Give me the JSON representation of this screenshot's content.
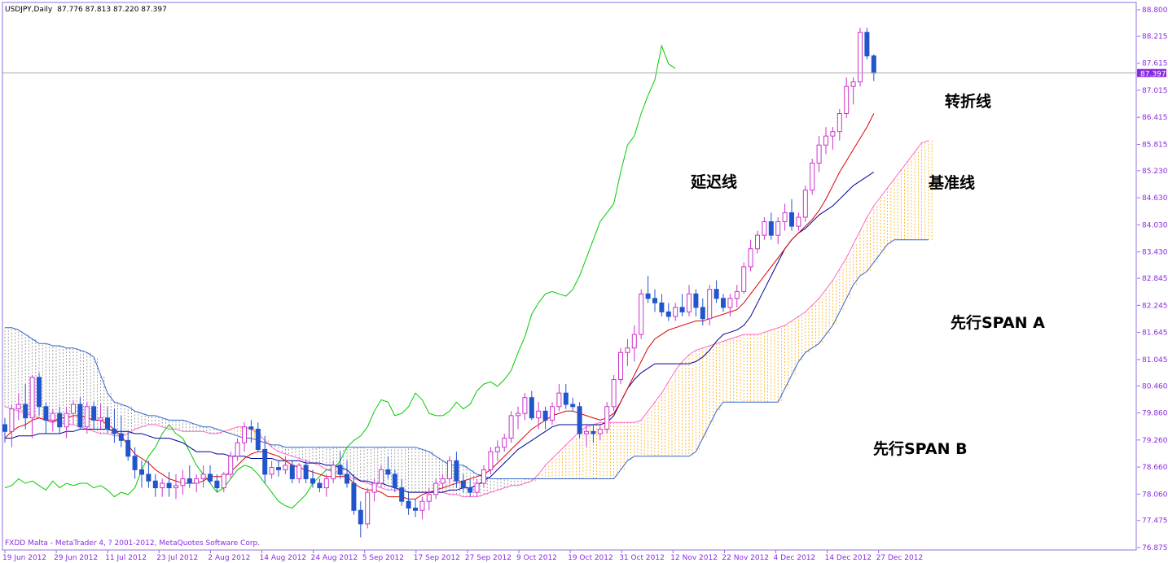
{
  "chart_data": {
    "type": "candlestick",
    "title": "USDJPY,Daily",
    "ohlc_header": "87.776 87.813 87.220 87.397",
    "footer": "FXDD Malta - MetaTrader 4, ? 2001-2012, MetaQuotes Software Corp.",
    "current_price_label": "87.397",
    "current_price": 87.397,
    "ylim": [
      76.875,
      88.8
    ],
    "y_ticks": [
      "88.800",
      "88.215",
      "87.615",
      "87.015",
      "86.415",
      "85.815",
      "85.230",
      "84.630",
      "84.030",
      "83.430",
      "82.845",
      "82.245",
      "81.645",
      "81.045",
      "80.460",
      "79.860",
      "79.260",
      "78.660",
      "78.060",
      "77.475",
      "76.875"
    ],
    "x_ticks": [
      "19 Jun 2012",
      "29 Jun 2012",
      "11 Jul 2012",
      "23 Jul 2012",
      "2 Aug 2012",
      "14 Aug 2012",
      "24 Aug 2012",
      "5 Sep 2012",
      "17 Sep 2012",
      "27 Sep 2012",
      "9 Oct 2012",
      "19 Oct 2012",
      "31 Oct 2012",
      "12 Nov 2012",
      "22 Nov 2012",
      "4 Dec 2012",
      "14 Dec 2012",
      "27 Dec 2012"
    ],
    "annotations": [
      "转折线",
      "延迟线",
      "基准线",
      "先行SPAN A",
      "先行SPAN B"
    ],
    "colors": {
      "bull": "#cc33cc",
      "bear": "#2255cc",
      "tenkan": "#dd0000",
      "kijun": "#000099",
      "chikou": "#00cc00",
      "span_a": "#ff66cc",
      "span_b": "#3366cc",
      "cloud_bull": "#ffaa00",
      "cloud_bear": "#888888",
      "axis_text": "#8a2be2"
    },
    "candles": [
      [
        79.6,
        79.75,
        79.2,
        79.45
      ],
      [
        79.45,
        80.05,
        79.1,
        79.95
      ],
      [
        79.95,
        80.3,
        79.7,
        80.05
      ],
      [
        80.05,
        80.5,
        79.5,
        79.75
      ],
      [
        79.75,
        80.7,
        79.3,
        80.65
      ],
      [
        80.65,
        80.75,
        79.8,
        80.0
      ],
      [
        80.0,
        80.1,
        79.4,
        79.7
      ],
      [
        79.7,
        79.95,
        79.45,
        79.85
      ],
      [
        79.85,
        80.0,
        79.4,
        79.55
      ],
      [
        79.55,
        80.0,
        79.3,
        79.85
      ],
      [
        79.85,
        80.15,
        79.6,
        80.05
      ],
      [
        80.05,
        80.2,
        79.5,
        79.55
      ],
      [
        79.55,
        80.1,
        79.4,
        80.0
      ],
      [
        80.0,
        80.1,
        79.5,
        79.7
      ],
      [
        79.7,
        80.05,
        79.5,
        79.75
      ],
      [
        79.75,
        80.0,
        79.4,
        79.5
      ],
      [
        79.5,
        79.95,
        79.2,
        79.4
      ],
      [
        79.4,
        79.8,
        79.1,
        79.25
      ],
      [
        79.25,
        79.45,
        78.8,
        78.9
      ],
      [
        78.9,
        79.1,
        78.4,
        78.6
      ],
      [
        78.6,
        78.8,
        78.2,
        78.5
      ],
      [
        78.5,
        78.8,
        78.2,
        78.35
      ],
      [
        78.35,
        78.5,
        78.0,
        78.2
      ],
      [
        78.2,
        78.4,
        78.0,
        78.3
      ],
      [
        78.3,
        78.55,
        78.0,
        78.2
      ],
      [
        78.2,
        78.5,
        77.95,
        78.25
      ],
      [
        78.25,
        78.6,
        78.05,
        78.4
      ],
      [
        78.4,
        78.7,
        78.2,
        78.3
      ],
      [
        78.3,
        78.5,
        78.1,
        78.4
      ],
      [
        78.4,
        78.7,
        78.2,
        78.5
      ],
      [
        78.5,
        78.7,
        78.3,
        78.35
      ],
      [
        78.35,
        78.5,
        78.1,
        78.2
      ],
      [
        78.2,
        78.55,
        78.1,
        78.5
      ],
      [
        78.5,
        79.0,
        78.4,
        78.9
      ],
      [
        78.9,
        79.3,
        78.8,
        79.2
      ],
      [
        79.2,
        79.65,
        79.0,
        79.55
      ],
      [
        79.55,
        79.7,
        79.2,
        79.5
      ],
      [
        79.5,
        79.65,
        79.0,
        79.05
      ],
      [
        79.05,
        79.35,
        78.3,
        78.5
      ],
      [
        78.5,
        78.8,
        78.4,
        78.65
      ],
      [
        78.65,
        78.8,
        78.45,
        78.6
      ],
      [
        78.6,
        78.9,
        78.5,
        78.7
      ],
      [
        78.7,
        78.8,
        78.3,
        78.4
      ],
      [
        78.4,
        78.75,
        78.3,
        78.7
      ],
      [
        78.7,
        78.8,
        78.3,
        78.4
      ],
      [
        78.4,
        78.6,
        78.2,
        78.3
      ],
      [
        78.3,
        78.4,
        78.1,
        78.2
      ],
      [
        78.2,
        78.5,
        78.0,
        78.4
      ],
      [
        78.4,
        78.8,
        78.3,
        78.7
      ],
      [
        78.7,
        79.0,
        78.4,
        78.5
      ],
      [
        78.5,
        78.8,
        78.2,
        78.3
      ],
      [
        78.3,
        78.5,
        77.6,
        77.7
      ],
      [
        77.7,
        77.9,
        77.1,
        77.4
      ],
      [
        77.4,
        78.2,
        77.3,
        78.1
      ],
      [
        78.1,
        78.4,
        77.9,
        78.3
      ],
      [
        78.3,
        78.7,
        78.2,
        78.6
      ],
      [
        78.6,
        78.9,
        78.4,
        78.5
      ],
      [
        78.5,
        78.6,
        78.1,
        78.2
      ],
      [
        78.2,
        78.4,
        77.8,
        77.9
      ],
      [
        77.9,
        78.1,
        77.6,
        77.75
      ],
      [
        77.75,
        77.95,
        77.55,
        77.7
      ],
      [
        77.7,
        78.0,
        77.5,
        77.9
      ],
      [
        77.9,
        78.2,
        77.7,
        78.05
      ],
      [
        78.05,
        78.4,
        77.95,
        78.3
      ],
      [
        78.3,
        78.5,
        78.2,
        78.4
      ],
      [
        78.4,
        78.9,
        78.3,
        78.8
      ],
      [
        78.8,
        79.0,
        78.2,
        78.35
      ],
      [
        78.35,
        78.5,
        78.1,
        78.2
      ],
      [
        78.2,
        78.4,
        78.0,
        78.1
      ],
      [
        78.1,
        78.4,
        78.0,
        78.3
      ],
      [
        78.3,
        78.7,
        78.2,
        78.6
      ],
      [
        78.6,
        79.1,
        78.5,
        79.0
      ],
      [
        79.0,
        79.25,
        78.8,
        79.1
      ],
      [
        79.1,
        79.4,
        79.0,
        79.3
      ],
      [
        79.3,
        79.9,
        79.2,
        79.8
      ],
      [
        79.8,
        80.0,
        79.5,
        79.85
      ],
      [
        79.85,
        80.3,
        79.7,
        80.2
      ],
      [
        80.2,
        80.35,
        79.7,
        79.75
      ],
      [
        79.75,
        80.1,
        79.5,
        79.9
      ],
      [
        79.9,
        80.0,
        79.5,
        79.7
      ],
      [
        79.7,
        80.1,
        79.6,
        80.0
      ],
      [
        80.0,
        80.5,
        79.9,
        80.3
      ],
      [
        80.3,
        80.5,
        79.95,
        80.05
      ],
      [
        80.05,
        80.2,
        79.9,
        80.0
      ],
      [
        80.0,
        80.1,
        79.3,
        79.4
      ],
      [
        79.4,
        79.6,
        79.1,
        79.45
      ],
      [
        79.45,
        79.6,
        79.2,
        79.4
      ],
      [
        79.4,
        79.6,
        79.25,
        79.5
      ],
      [
        79.5,
        80.1,
        79.4,
        80.0
      ],
      [
        80.0,
        80.7,
        79.9,
        80.6
      ],
      [
        80.6,
        81.3,
        80.5,
        81.2
      ],
      [
        81.2,
        81.5,
        80.9,
        81.3
      ],
      [
        81.3,
        81.8,
        81.0,
        81.6
      ],
      [
        81.6,
        82.6,
        81.5,
        82.5
      ],
      [
        82.5,
        82.9,
        82.3,
        82.4
      ],
      [
        82.4,
        82.6,
        82.1,
        82.3
      ],
      [
        82.3,
        82.5,
        82.0,
        82.1
      ],
      [
        82.1,
        82.3,
        81.9,
        82.0
      ],
      [
        82.0,
        82.3,
        81.9,
        82.2
      ],
      [
        82.2,
        82.5,
        82.0,
        82.1
      ],
      [
        82.1,
        82.7,
        82.0,
        82.5
      ],
      [
        82.5,
        82.6,
        82.0,
        82.2
      ],
      [
        82.2,
        82.4,
        81.8,
        81.95
      ],
      [
        81.95,
        82.7,
        81.8,
        82.6
      ],
      [
        82.6,
        82.8,
        82.3,
        82.4
      ],
      [
        82.4,
        82.5,
        82.1,
        82.2
      ],
      [
        82.2,
        82.5,
        82.0,
        82.4
      ],
      [
        82.4,
        82.7,
        82.2,
        82.55
      ],
      [
        82.55,
        83.2,
        82.5,
        83.1
      ],
      [
        83.1,
        83.7,
        83.0,
        83.5
      ],
      [
        83.5,
        83.9,
        83.4,
        83.8
      ],
      [
        83.8,
        84.2,
        83.7,
        84.1
      ],
      [
        84.1,
        84.3,
        83.7,
        83.8
      ],
      [
        83.8,
        84.2,
        83.6,
        84.1
      ],
      [
        84.1,
        84.5,
        83.9,
        84.3
      ],
      [
        84.3,
        84.6,
        83.9,
        84.0
      ],
      [
        84.0,
        84.3,
        83.9,
        84.2
      ],
      [
        84.2,
        84.9,
        84.1,
        84.8
      ],
      [
        84.8,
        85.5,
        84.7,
        85.4
      ],
      [
        85.4,
        86.0,
        85.2,
        85.8
      ],
      [
        85.8,
        86.2,
        85.6,
        86.0
      ],
      [
        86.0,
        86.2,
        85.7,
        86.1
      ],
      [
        86.1,
        86.6,
        85.9,
        86.5
      ],
      [
        86.5,
        87.3,
        86.4,
        87.1
      ],
      [
        87.1,
        87.3,
        86.7,
        87.2
      ],
      [
        87.2,
        88.4,
        87.1,
        88.3
      ],
      [
        88.3,
        88.4,
        87.7,
        87.776
      ],
      [
        87.776,
        87.813,
        87.22,
        87.397
      ]
    ],
    "tenkan": [
      79.3,
      79.45,
      79.55,
      79.6,
      79.7,
      79.75,
      79.7,
      79.65,
      79.75,
      79.75,
      79.8,
      79.8,
      79.75,
      79.7,
      79.7,
      79.6,
      79.5,
      79.35,
      79.15,
      78.95,
      78.85,
      78.75,
      78.6,
      78.5,
      78.4,
      78.35,
      78.3,
      78.3,
      78.3,
      78.35,
      78.45,
      78.45,
      78.45,
      78.55,
      78.7,
      78.85,
      78.95,
      79.0,
      79.0,
      78.95,
      78.9,
      78.8,
      78.7,
      78.65,
      78.6,
      78.55,
      78.5,
      78.45,
      78.45,
      78.45,
      78.45,
      78.3,
      78.2,
      78.15,
      78.15,
      78.1,
      78.0,
      78.0,
      78.0,
      77.95,
      77.95,
      78.05,
      78.1,
      78.15,
      78.2,
      78.25,
      78.3,
      78.35,
      78.4,
      78.45,
      78.5,
      78.6,
      78.75,
      78.9,
      79.05,
      79.2,
      79.35,
      79.5,
      79.6,
      79.7,
      79.8,
      79.85,
      79.9,
      79.9,
      79.85,
      79.8,
      79.75,
      79.7,
      79.75,
      79.85,
      80.1,
      80.4,
      80.7,
      81.0,
      81.3,
      81.5,
      81.6,
      81.7,
      81.75,
      81.8,
      81.85,
      81.9,
      81.9,
      81.95,
      82.0,
      82.05,
      82.1,
      82.15,
      82.3,
      82.5,
      82.7,
      82.9,
      83.1,
      83.3,
      83.5,
      83.7,
      83.85,
      84.0,
      84.15,
      84.35,
      84.6,
      84.9,
      85.2,
      85.45,
      85.7,
      85.95,
      86.2,
      86.5
    ],
    "kijun": [
      79.3,
      79.3,
      79.35,
      79.35,
      79.35,
      79.4,
      79.4,
      79.4,
      79.4,
      79.45,
      79.45,
      79.5,
      79.5,
      79.5,
      79.5,
      79.5,
      79.45,
      79.45,
      79.45,
      79.4,
      79.4,
      79.35,
      79.3,
      79.3,
      79.3,
      79.25,
      79.2,
      79.1,
      79.0,
      79.0,
      79.0,
      78.95,
      78.95,
      78.9,
      78.9,
      78.9,
      78.85,
      78.85,
      78.85,
      78.85,
      78.8,
      78.8,
      78.8,
      78.8,
      78.75,
      78.75,
      78.75,
      78.7,
      78.7,
      78.65,
      78.6,
      78.45,
      78.35,
      78.35,
      78.3,
      78.3,
      78.25,
      78.2,
      78.15,
      78.1,
      78.1,
      78.1,
      78.1,
      78.1,
      78.1,
      78.15,
      78.15,
      78.2,
      78.2,
      78.25,
      78.35,
      78.45,
      78.6,
      78.75,
      78.9,
      79.05,
      79.15,
      79.25,
      79.35,
      79.45,
      79.55,
      79.6,
      79.6,
      79.6,
      79.6,
      79.6,
      79.6,
      79.6,
      79.65,
      79.8,
      80.1,
      80.4,
      80.6,
      80.75,
      80.85,
      80.95,
      80.95,
      80.95,
      80.95,
      80.95,
      80.95,
      81.0,
      81.1,
      81.25,
      81.45,
      81.6,
      81.65,
      81.7,
      81.8,
      82.0,
      82.3,
      82.6,
      82.9,
      83.2,
      83.5,
      83.7,
      83.85,
      83.95,
      84.1,
      84.25,
      84.35,
      84.45,
      84.6,
      84.75,
      84.9,
      85.0,
      85.1,
      85.2
    ],
    "chikou": [
      78.2,
      78.25,
      78.4,
      78.3,
      78.35,
      78.25,
      78.15,
      78.35,
      78.2,
      78.3,
      78.25,
      78.3,
      78.3,
      78.2,
      78.25,
      78.15,
      78.0,
      78.1,
      78.05,
      78.2,
      78.6,
      78.9,
      79.1,
      79.4,
      79.6,
      79.4,
      79.3,
      79.0,
      78.7,
      78.5,
      78.3,
      78.1,
      78.2,
      78.4,
      78.6,
      78.7,
      78.65,
      78.5,
      78.3,
      78.1,
      77.9,
      77.8,
      77.75,
      77.9,
      78.05,
      78.3,
      78.45,
      78.6,
      78.6,
      78.8,
      79.1,
      79.25,
      79.35,
      79.55,
      79.9,
      80.15,
      80.1,
      79.8,
      79.85,
      80.0,
      80.3,
      80.15,
      79.85,
      79.8,
      79.8,
      79.9,
      80.1,
      79.95,
      80.05,
      80.35,
      80.5,
      80.55,
      80.45,
      80.6,
      80.8,
      81.2,
      81.55,
      82.05,
      82.3,
      82.5,
      82.55,
      82.5,
      82.45,
      82.6,
      82.9,
      83.3,
      83.7,
      84.1,
      84.3,
      84.5,
      85.2,
      85.8,
      86.0,
      86.5,
      86.9,
      87.25,
      88.0,
      87.6,
      87.5
    ],
    "chikou_start": 0,
    "span_a": [
      80.0,
      79.95,
      79.9,
      79.85,
      79.8,
      79.75,
      79.7,
      79.7,
      79.65,
      79.6,
      79.6,
      79.55,
      79.5,
      79.45,
      79.4,
      79.4,
      79.35,
      79.35,
      79.4,
      79.5,
      79.55,
      79.6,
      79.6,
      79.55,
      79.5,
      79.5,
      79.45,
      79.45,
      79.45,
      79.45,
      79.4,
      79.4,
      79.45,
      79.5,
      79.55,
      79.55,
      79.5,
      79.4,
      79.25,
      79.1,
      79.0,
      78.95,
      78.9,
      78.85,
      78.8,
      78.75,
      78.7,
      78.6,
      78.55,
      78.5,
      78.45,
      78.4,
      78.35,
      78.3,
      78.25,
      78.2,
      78.15,
      78.15,
      78.15,
      78.1,
      78.1,
      78.1,
      78.1,
      78.1,
      78.1,
      78.05,
      78.05,
      78.0,
      78.0,
      78.0,
      78.05,
      78.1,
      78.15,
      78.2,
      78.25,
      78.25,
      78.3,
      78.35,
      78.5,
      78.7,
      78.85,
      79.0,
      79.15,
      79.3,
      79.45,
      79.55,
      79.6,
      79.65,
      79.65,
      79.65,
      79.65,
      79.65,
      79.65,
      79.7,
      79.9,
      80.1,
      80.3,
      80.55,
      80.8,
      81.0,
      81.15,
      81.25,
      81.3,
      81.35,
      81.4,
      81.45,
      81.5,
      81.55,
      81.6,
      81.6,
      81.6,
      81.65,
      81.7,
      81.75,
      81.8,
      81.9,
      82.0,
      82.1,
      82.25,
      82.4,
      82.6,
      82.8,
      83.05,
      83.3,
      83.6,
      83.9,
      84.2,
      84.45,
      84.65,
      84.85,
      85.05,
      85.25,
      85.45,
      85.65,
      85.85,
      85.9
    ],
    "span_b": [
      81.75,
      81.75,
      81.7,
      81.6,
      81.5,
      81.4,
      81.4,
      81.35,
      81.35,
      81.3,
      81.3,
      81.25,
      81.2,
      81.1,
      80.7,
      80.3,
      80.1,
      80.05,
      80.0,
      79.9,
      79.85,
      79.8,
      79.8,
      79.75,
      79.7,
      79.7,
      79.7,
      79.65,
      79.6,
      79.55,
      79.55,
      79.5,
      79.45,
      79.4,
      79.35,
      79.3,
      79.3,
      79.25,
      79.2,
      79.15,
      79.15,
      79.1,
      79.1,
      79.1,
      79.1,
      79.1,
      79.1,
      79.1,
      79.1,
      79.1,
      79.1,
      79.1,
      79.1,
      79.1,
      79.1,
      79.1,
      79.1,
      79.1,
      79.1,
      79.1,
      79.1,
      79.05,
      79.0,
      78.9,
      78.8,
      78.7,
      78.7,
      78.7,
      78.6,
      78.5,
      78.45,
      78.4,
      78.4,
      78.4,
      78.4,
      78.4,
      78.4,
      78.4,
      78.4,
      78.4,
      78.4,
      78.4,
      78.4,
      78.4,
      78.4,
      78.4,
      78.4,
      78.4,
      78.4,
      78.4,
      78.6,
      78.8,
      78.9,
      78.9,
      78.9,
      78.9,
      78.9,
      78.9,
      78.9,
      78.9,
      78.9,
      79.0,
      79.3,
      79.6,
      79.9,
      80.1,
      80.1,
      80.1,
      80.1,
      80.1,
      80.1,
      80.1,
      80.1,
      80.1,
      80.4,
      80.7,
      81.0,
      81.2,
      81.3,
      81.4,
      81.6,
      81.8,
      82.1,
      82.4,
      82.7,
      82.9,
      83.0,
      83.2,
      83.4,
      83.6,
      83.7,
      83.7,
      83.7,
      83.7,
      83.7,
      83.7
    ]
  }
}
